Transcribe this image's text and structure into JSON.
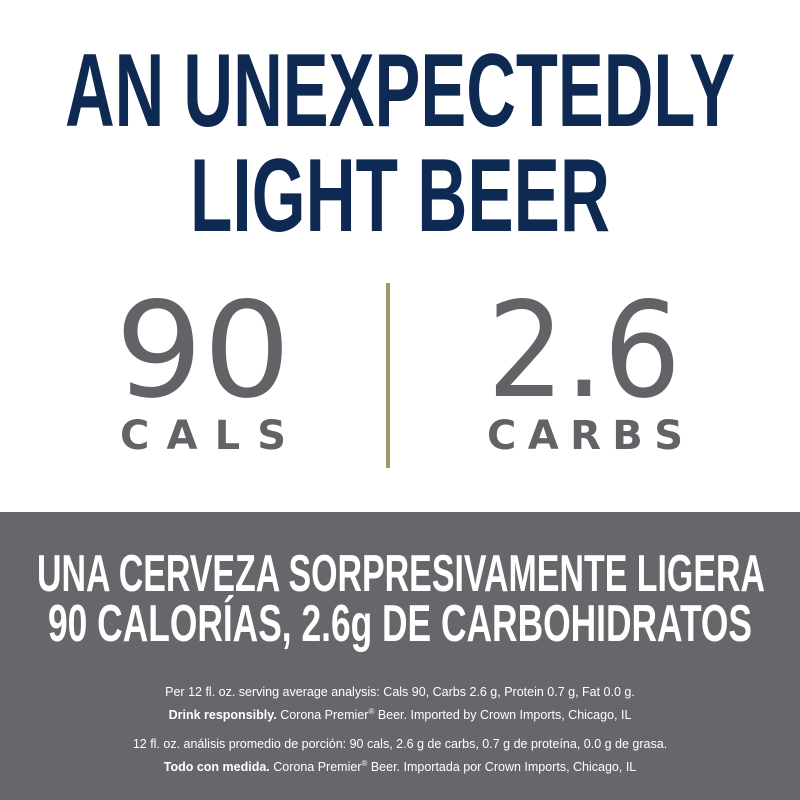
{
  "headline": [
    "AN UNEXPECTEDLY",
    "LIGHT BEER"
  ],
  "stats": [
    {
      "value": "90",
      "label": "CALS"
    },
    {
      "value": "2.6",
      "label": "CARBS"
    }
  ],
  "spanish": [
    "UNA CERVEZA SORPRESIVAMENTE LIGERA",
    "90 CALORÍAS, 2.6g DE CARBOHIDRATOS"
  ],
  "footnotes": [
    {
      "analysis": "Per 12 fl. oz. serving average analysis: Cals 90, Carbs 2.6 g, Protein 0.7 g, Fat 0.0 g.",
      "bold": "Drink responsibly.",
      "brand": " Corona Premier",
      "mark": "®",
      "rest": " Beer. Imported by Crown Imports, Chicago, IL"
    },
    {
      "analysis": "12 fl. oz. análisis promedio de porción: 90 cals, 2.6 g de carbs, 0.7 g de proteína, 0.0 g de grasa.",
      "bold": "Todo con medida.",
      "brand": " Corona Premier",
      "mark": "®",
      "rest": " Beer. Importada por Crown Imports, Chicago, IL"
    }
  ]
}
